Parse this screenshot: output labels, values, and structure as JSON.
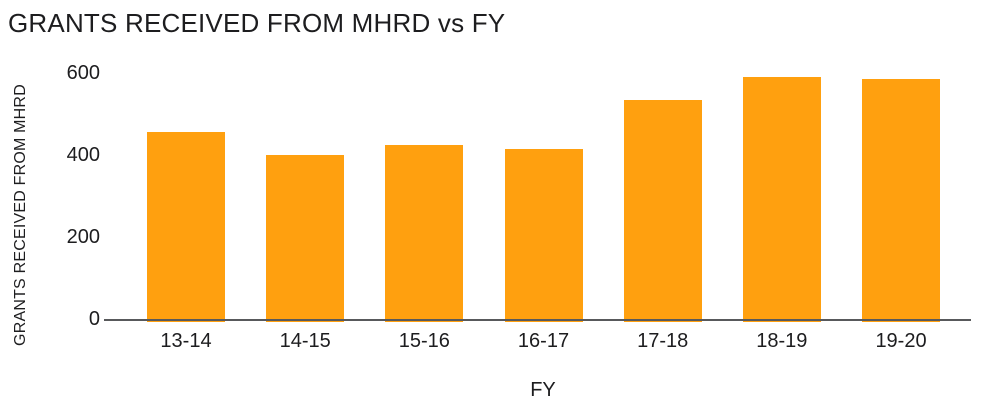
{
  "chart_data": {
    "type": "bar",
    "title": "GRANTS RECEIVED FROM MHRD vs FY",
    "xlabel": "FY",
    "ylabel": "GRANTS RECEIVED FROM MHRD",
    "categories": [
      "13-14",
      "14-15",
      "15-16",
      "16-17",
      "17-18",
      "18-19",
      "19-20"
    ],
    "values": [
      455,
      400,
      425,
      415,
      535,
      590,
      585
    ],
    "ylim": [
      0,
      600
    ],
    "yticks": [
      0,
      200,
      400,
      600
    ],
    "grid": false,
    "legend": false,
    "colors": {
      "bar": "#ffa00f",
      "axis_line": "#58595b",
      "text": "#1d1d1f",
      "background": "#ffffff"
    }
  }
}
